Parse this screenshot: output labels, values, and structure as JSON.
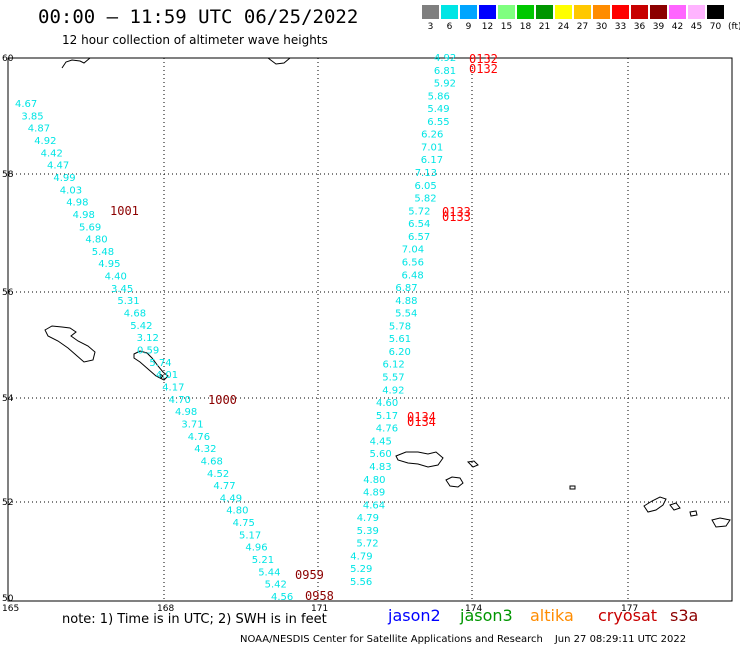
{
  "header": {
    "title": "00:00 – 11:59 UTC 06/25/2022",
    "subtitle": "12 hour collection of altimeter wave heights"
  },
  "legend": {
    "unit": "(ft)",
    "bins": [
      {
        "label": "3",
        "color": "#7f7f7f"
      },
      {
        "label": "6",
        "color": "#00e5e5"
      },
      {
        "label": "9",
        "color": "#00a5ff"
      },
      {
        "label": "12",
        "color": "#0000ff"
      },
      {
        "label": "15",
        "color": "#7fff7f"
      },
      {
        "label": "18",
        "color": "#00c800"
      },
      {
        "label": "21",
        "color": "#009600"
      },
      {
        "label": "24",
        "color": "#ffff00"
      },
      {
        "label": "27",
        "color": "#ffc800"
      },
      {
        "label": "30",
        "color": "#ff8c00"
      },
      {
        "label": "33",
        "color": "#ff0000"
      },
      {
        "label": "36",
        "color": "#c80000"
      },
      {
        "label": "39",
        "color": "#8c0000"
      },
      {
        "label": "42",
        "color": "#ff64ff"
      },
      {
        "label": "45",
        "color": "#ffb4ff"
      },
      {
        "label": "70",
        "color": "#000000"
      }
    ]
  },
  "axes": {
    "lat_labels": [
      "60",
      "58",
      "56",
      "54",
      "52",
      "50"
    ],
    "lon_labels": [
      "165",
      "168",
      "171",
      "174",
      "177"
    ]
  },
  "colors": {
    "obs": "#00e5e5",
    "pass_jason3": "#8c0000",
    "pass_s3a": "#ff0000"
  },
  "tracks": {
    "west": [
      "4.67",
      "3.85",
      "4.87",
      "4.92",
      "4.42",
      "4.47",
      "4.99",
      "4.03",
      "4.98",
      "4.98",
      "5.69",
      "4.80",
      "5.48",
      "4.95",
      "4.40",
      "3.45",
      "5.31",
      "4.68",
      "5.42",
      "3.12",
      "0.59",
      "5.74",
      "4.01",
      "4.17",
      "4.70",
      "4.98",
      "3.71",
      "4.76",
      "4.32",
      "4.68",
      "4.52",
      "4.77",
      "4.49",
      "4.80",
      "4.75",
      "5.17",
      "4.96",
      "5.21",
      "5.44",
      "5.42",
      "4.56"
    ],
    "east": [
      "4.92",
      "6.81",
      "5.92",
      "5.86",
      "5.49",
      "6.55",
      "6.26",
      "7.01",
      "6.17",
      "7.13",
      "6.05",
      "5.82",
      "5.72",
      "6.54",
      "6.57",
      "7.04",
      "6.56",
      "6.48",
      "6.87",
      "4.88",
      "5.54",
      "5.78",
      "5.61",
      "6.20",
      "6.12",
      "5.57",
      "4.92",
      "4.60",
      "5.17",
      "4.76",
      "4.45",
      "5.60",
      "4.83",
      "4.80",
      "4.89",
      "4.64",
      "4.79",
      "5.39",
      "5.72",
      "4.79",
      "5.29",
      "5.56"
    ]
  },
  "pass_labels": {
    "w1": "1001",
    "w2": "1000",
    "w3": "0959",
    "w4": "0958",
    "e1": "0132",
    "e2": "0132",
    "e3": "0133",
    "e4": "0133",
    "e5": "0134",
    "e6": "0134"
  },
  "footer": {
    "note": "note:  1) Time is in UTC;  2) SWH is in feet",
    "credit": "NOAA/NESDIS Center for Satellite Applications and Research",
    "timestamp": "Jun 27 08:29:11 UTC 2022"
  },
  "satellites": [
    {
      "name": "jason2",
      "color": "#0000ff"
    },
    {
      "name": "jason3",
      "color": "#009600"
    },
    {
      "name": "altika",
      "color": "#ff8c00"
    },
    {
      "name": "cryosat",
      "color": "#c80000"
    },
    {
      "name": "s3a",
      "color": "#8c0000"
    }
  ]
}
